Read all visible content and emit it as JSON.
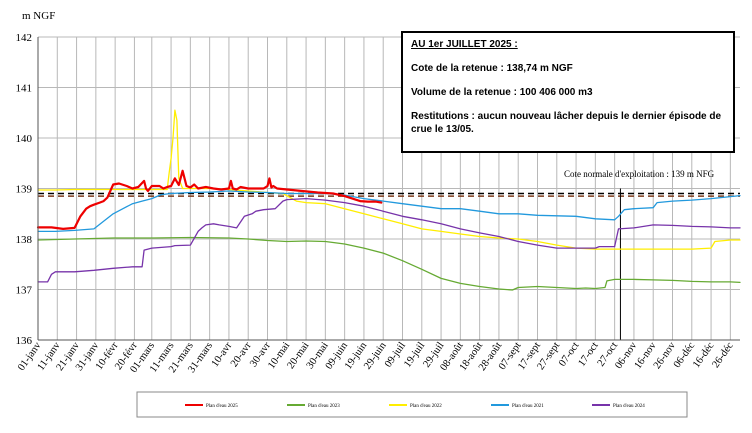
{
  "info_box": {
    "title": "AU 1er JUILLET 2025 :",
    "line1": "Cote de la retenue : 138,74 m NGF",
    "line2": "Volume de la retenue : 100 406 000 m3",
    "line3": "Restitutions : aucun nouveau lâcher depuis le dernier épisode de crue le 13/05."
  },
  "chart_data": {
    "type": "line",
    "ylabel": "m NGF",
    "ylim": [
      136,
      142
    ],
    "yticks": [
      136,
      137,
      138,
      139,
      140,
      141,
      142
    ],
    "grid": true,
    "legend_placement": "bottom",
    "x_unit": "day of year",
    "xlim": [
      1,
      365
    ],
    "x_tick_days": [
      1,
      11,
      21,
      31,
      41,
      51,
      60,
      70,
      80,
      90,
      100,
      110,
      120,
      130,
      140,
      150,
      160,
      170,
      180,
      190,
      200,
      210,
      220,
      230,
      240,
      250,
      260,
      270,
      280,
      290,
      300,
      310,
      320,
      330,
      340,
      350,
      360
    ],
    "categories": [
      "01-janv",
      "11-janv",
      "21-janv",
      "31-janv",
      "10-févr",
      "20-févr",
      "01-mars",
      "11-mars",
      "21-mars",
      "31-mars",
      "10-avr",
      "20-avr",
      "30-avr",
      "10-mai",
      "20-mai",
      "30-mai",
      "09-juin",
      "19-juin",
      "29-juin",
      "09-juil",
      "19-juil",
      "29-juil",
      "08-août",
      "18-août",
      "28-août",
      "07-sept",
      "17-sept",
      "27-sept",
      "07-oct",
      "17-oct",
      "27-oct",
      "06-nov",
      "16-nov",
      "26-nov",
      "06-déc",
      "16-déc",
      "26-déc"
    ],
    "reference_lines": [
      {
        "label": "Cote normale d'exploitation : 139 m NFG",
        "y": 138.85,
        "color": "#7a3a1a",
        "style": "dashed"
      },
      {
        "label": "",
        "y": 138.9,
        "color": "#000000",
        "style": "dashed"
      }
    ],
    "vertical_marker_day": 303,
    "series": [
      {
        "name": "Plan d'eau 2025",
        "color": "#ee0000",
        "width": 2.2,
        "x": [
          1,
          8,
          14,
          20,
          23,
          26,
          28,
          30,
          33,
          35,
          37,
          40,
          43,
          47,
          50,
          53,
          56,
          57,
          58,
          60,
          64,
          66,
          68,
          70,
          72,
          74,
          76,
          78,
          80,
          82,
          84,
          88,
          92,
          96,
          100,
          101,
          102,
          104,
          106,
          110,
          114,
          118,
          120,
          121,
          122,
          123,
          125,
          130,
          138,
          146,
          154,
          160,
          164,
          168,
          172,
          176,
          179
        ],
        "y": [
          138.23,
          138.23,
          138.2,
          138.22,
          138.45,
          138.6,
          138.65,
          138.68,
          138.72,
          138.75,
          138.82,
          139.08,
          139.1,
          139.05,
          139.0,
          139.03,
          139.15,
          139.0,
          138.95,
          139.05,
          139.05,
          139.0,
          139.03,
          139.05,
          139.2,
          139.07,
          139.35,
          139.05,
          139.02,
          139.08,
          139.0,
          139.03,
          139.0,
          138.98,
          139.0,
          139.15,
          139.0,
          138.98,
          139.03,
          139.0,
          139.0,
          139.0,
          139.05,
          139.2,
          139.02,
          139.05,
          139.0,
          138.98,
          138.95,
          138.92,
          138.9,
          138.85,
          138.8,
          138.75,
          138.74,
          138.74,
          138.72
        ]
      },
      {
        "name": "Plan d'eau 2023",
        "color": "#66aa33",
        "width": 1.3,
        "x": [
          1,
          20,
          40,
          60,
          80,
          100,
          110,
          120,
          130,
          140,
          150,
          160,
          170,
          180,
          190,
          200,
          210,
          220,
          230,
          240,
          247,
          250,
          255,
          260,
          265,
          270,
          275,
          280,
          285,
          290,
          295,
          296,
          300,
          310,
          320,
          330,
          340,
          350,
          360,
          365
        ],
        "y": [
          137.98,
          138.0,
          138.02,
          138.02,
          138.03,
          138.02,
          138.0,
          137.97,
          137.95,
          137.96,
          137.95,
          137.9,
          137.82,
          137.72,
          137.57,
          137.4,
          137.22,
          137.12,
          137.06,
          137.01,
          136.99,
          137.04,
          137.05,
          137.06,
          137.05,
          137.04,
          137.03,
          137.02,
          137.03,
          137.02,
          137.04,
          137.17,
          137.2,
          137.2,
          137.19,
          137.18,
          137.16,
          137.15,
          137.15,
          137.14
        ]
      },
      {
        "name": "Plan d'eau 2022",
        "color": "#ffee00",
        "width": 1.3,
        "x": [
          1,
          10,
          20,
          30,
          40,
          50,
          55,
          60,
          64,
          66,
          68,
          69,
          70,
          71,
          72,
          73,
          74,
          76,
          80,
          90,
          100,
          110,
          120,
          128,
          135,
          140,
          150,
          160,
          170,
          180,
          190,
          200,
          210,
          220,
          230,
          240,
          250,
          260,
          270,
          275,
          280,
          290,
          300,
          310,
          320,
          330,
          340,
          350,
          352,
          360,
          365
        ],
        "y": [
          138.97,
          138.97,
          138.98,
          138.98,
          138.98,
          138.98,
          138.98,
          138.98,
          138.98,
          138.98,
          138.98,
          139.3,
          139.6,
          140.0,
          140.55,
          140.35,
          139.2,
          139.0,
          139.0,
          139.0,
          138.98,
          138.95,
          138.92,
          138.9,
          138.75,
          138.72,
          138.7,
          138.6,
          138.5,
          138.4,
          138.3,
          138.2,
          138.15,
          138.1,
          138.05,
          138.02,
          138.0,
          137.95,
          137.88,
          137.85,
          137.82,
          137.8,
          137.8,
          137.8,
          137.8,
          137.8,
          137.8,
          137.82,
          137.95,
          137.98,
          137.98
        ]
      },
      {
        "name": "Plan d'eau 2021",
        "color": "#2299dd",
        "width": 1.3,
        "x": [
          1,
          10,
          20,
          30,
          35,
          40,
          45,
          50,
          55,
          60,
          63,
          65,
          70,
          80,
          90,
          100,
          110,
          120,
          130,
          140,
          150,
          160,
          170,
          180,
          190,
          200,
          210,
          220,
          230,
          240,
          250,
          260,
          270,
          280,
          290,
          300,
          302,
          305,
          310,
          320,
          322,
          330,
          340,
          350,
          360,
          365
        ],
        "y": [
          138.15,
          138.15,
          138.17,
          138.2,
          138.35,
          138.5,
          138.6,
          138.7,
          138.75,
          138.8,
          138.85,
          138.88,
          138.9,
          138.92,
          138.93,
          138.95,
          138.93,
          138.92,
          138.9,
          138.9,
          138.9,
          138.87,
          138.8,
          138.75,
          138.7,
          138.65,
          138.6,
          138.6,
          138.55,
          138.5,
          138.5,
          138.47,
          138.46,
          138.45,
          138.4,
          138.38,
          138.45,
          138.58,
          138.6,
          138.62,
          138.72,
          138.75,
          138.77,
          138.8,
          138.84,
          138.86
        ]
      },
      {
        "name": "Plan d'eau 2024",
        "color": "#7733aa",
        "width": 1.3,
        "x": [
          1,
          6,
          8,
          10,
          20,
          30,
          40,
          50,
          55,
          56,
          60,
          70,
          72,
          80,
          84,
          86,
          88,
          92,
          95,
          100,
          104,
          108,
          112,
          114,
          118,
          124,
          128,
          130,
          140,
          150,
          160,
          170,
          180,
          190,
          200,
          210,
          220,
          230,
          240,
          250,
          260,
          270,
          280,
          290,
          292,
          300,
          302,
          310,
          320,
          330,
          340,
          350,
          360,
          365
        ],
        "y": [
          137.15,
          137.15,
          137.3,
          137.35,
          137.35,
          137.38,
          137.42,
          137.45,
          137.45,
          137.78,
          137.82,
          137.85,
          137.87,
          137.88,
          138.15,
          138.22,
          138.28,
          138.3,
          138.28,
          138.25,
          138.22,
          138.45,
          138.5,
          138.55,
          138.58,
          138.6,
          138.75,
          138.78,
          138.8,
          138.77,
          138.72,
          138.65,
          138.55,
          138.45,
          138.38,
          138.3,
          138.2,
          138.12,
          138.05,
          137.95,
          137.88,
          137.82,
          137.82,
          137.82,
          137.85,
          137.85,
          138.2,
          138.22,
          138.28,
          138.27,
          138.25,
          138.24,
          138.22,
          138.22
        ]
      }
    ]
  }
}
